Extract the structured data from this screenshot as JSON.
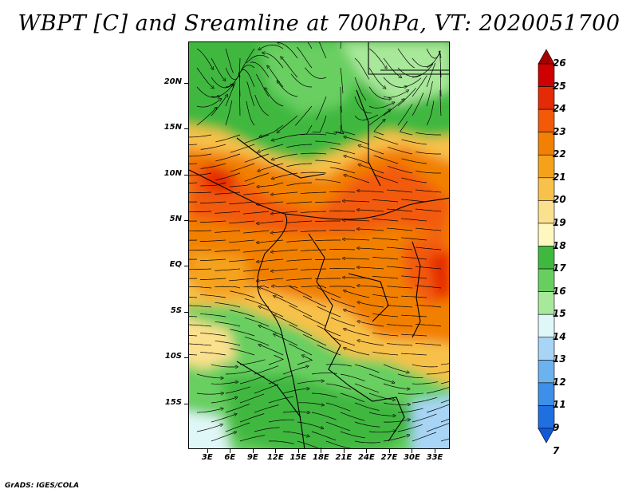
{
  "title": "WBPT [C] and Sreamline at 700hPa, VT: 2020051700",
  "credit": "GrADS: IGES/COLA",
  "map": {
    "lat_ticks": [
      "20N",
      "15N",
      "10N",
      "5N",
      "EQ",
      "5S",
      "10S",
      "15S"
    ],
    "lon_ticks": [
      "3E",
      "6E",
      "9E",
      "12E",
      "15E",
      "18E",
      "21E",
      "24E",
      "27E",
      "30E",
      "33E"
    ],
    "lat_values": [
      20,
      15,
      10,
      5,
      0,
      -5,
      -10,
      -15
    ],
    "lon_values": [
      3,
      6,
      9,
      12,
      15,
      18,
      21,
      24,
      27,
      30,
      33
    ],
    "lat_range": [
      -20,
      24.5
    ],
    "lon_range": [
      0.5,
      35
    ]
  },
  "colorbar": {
    "labels": [
      "26",
      "25",
      "24",
      "23",
      "22",
      "21",
      "20",
      "19",
      "18",
      "17",
      "16",
      "15",
      "14",
      "13",
      "12",
      "11",
      "9",
      "7"
    ],
    "colors": [
      "#a50000",
      "#cf0000",
      "#e52a06",
      "#f25a08",
      "#f28005",
      "#f5a21a",
      "#f7c14a",
      "#fbe08e",
      "#fff7c0",
      "#3fb83f",
      "#67cf60",
      "#a8e89a",
      "#e0f7f7",
      "#a8d4f5",
      "#6bb2ef",
      "#3d8fea",
      "#1f6fe0",
      "#1059d8"
    ]
  }
}
